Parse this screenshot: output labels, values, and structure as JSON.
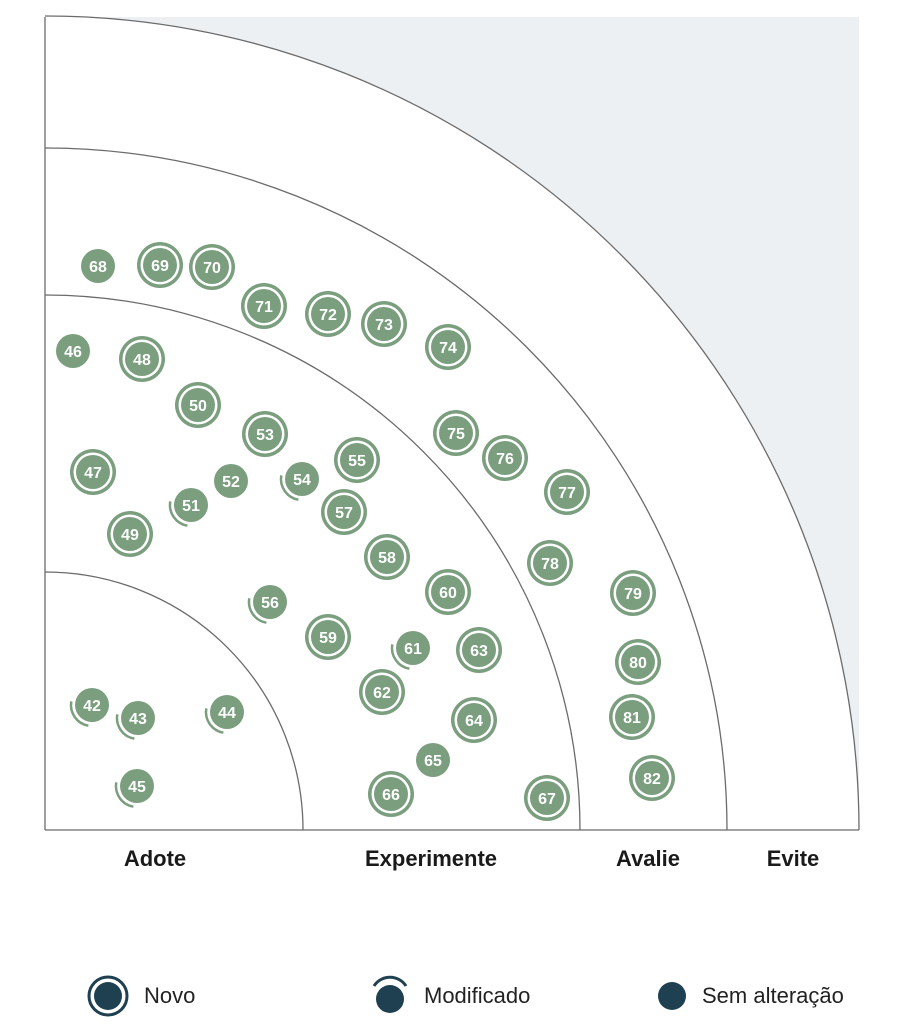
{
  "chart_data": {
    "type": "radar-quadrant",
    "rings": [
      "Adote",
      "Experimente",
      "Avalie",
      "Evite"
    ],
    "colors": {
      "blip": "#7a9e7e",
      "legend_icon": "#1e4050",
      "outer_area": "#edf0f2",
      "ring_line": "#6b6b6b",
      "label": "#1a1a1a"
    },
    "blips": [
      {
        "id": "42",
        "ring": "Adote",
        "status": "Modificado"
      },
      {
        "id": "43",
        "ring": "Adote",
        "status": "Modificado"
      },
      {
        "id": "44",
        "ring": "Adote",
        "status": "Modificado"
      },
      {
        "id": "45",
        "ring": "Adote",
        "status": "Modificado"
      },
      {
        "id": "46",
        "ring": "Experimente",
        "status": "Sem alteração"
      },
      {
        "id": "47",
        "ring": "Experimente",
        "status": "Novo"
      },
      {
        "id": "48",
        "ring": "Experimente",
        "status": "Novo"
      },
      {
        "id": "49",
        "ring": "Experimente",
        "status": "Novo"
      },
      {
        "id": "50",
        "ring": "Experimente",
        "status": "Novo"
      },
      {
        "id": "51",
        "ring": "Experimente",
        "status": "Modificado"
      },
      {
        "id": "52",
        "ring": "Experimente",
        "status": "Sem alteração"
      },
      {
        "id": "53",
        "ring": "Experimente",
        "status": "Novo"
      },
      {
        "id": "54",
        "ring": "Experimente",
        "status": "Modificado"
      },
      {
        "id": "55",
        "ring": "Experimente",
        "status": "Novo"
      },
      {
        "id": "56",
        "ring": "Experimente",
        "status": "Modificado"
      },
      {
        "id": "57",
        "ring": "Experimente",
        "status": "Novo"
      },
      {
        "id": "58",
        "ring": "Experimente",
        "status": "Novo"
      },
      {
        "id": "59",
        "ring": "Experimente",
        "status": "Novo"
      },
      {
        "id": "60",
        "ring": "Experimente",
        "status": "Novo"
      },
      {
        "id": "61",
        "ring": "Experimente",
        "status": "Modificado"
      },
      {
        "id": "62",
        "ring": "Experimente",
        "status": "Novo"
      },
      {
        "id": "63",
        "ring": "Experimente",
        "status": "Novo"
      },
      {
        "id": "64",
        "ring": "Experimente",
        "status": "Novo"
      },
      {
        "id": "65",
        "ring": "Experimente",
        "status": "Sem alteração"
      },
      {
        "id": "66",
        "ring": "Experimente",
        "status": "Novo"
      },
      {
        "id": "67",
        "ring": "Experimente",
        "status": "Novo"
      },
      {
        "id": "68",
        "ring": "Avalie",
        "status": "Sem alteração"
      },
      {
        "id": "69",
        "ring": "Avalie",
        "status": "Novo"
      },
      {
        "id": "70",
        "ring": "Avalie",
        "status": "Novo"
      },
      {
        "id": "71",
        "ring": "Avalie",
        "status": "Novo"
      },
      {
        "id": "72",
        "ring": "Avalie",
        "status": "Novo"
      },
      {
        "id": "73",
        "ring": "Avalie",
        "status": "Novo"
      },
      {
        "id": "74",
        "ring": "Avalie",
        "status": "Novo"
      },
      {
        "id": "75",
        "ring": "Avalie",
        "status": "Novo"
      },
      {
        "id": "76",
        "ring": "Avalie",
        "status": "Novo"
      },
      {
        "id": "77",
        "ring": "Avalie",
        "status": "Novo"
      },
      {
        "id": "78",
        "ring": "Avalie",
        "status": "Novo"
      },
      {
        "id": "79",
        "ring": "Avalie",
        "status": "Novo"
      },
      {
        "id": "80",
        "ring": "Avalie",
        "status": "Novo"
      },
      {
        "id": "81",
        "ring": "Avalie",
        "status": "Novo"
      },
      {
        "id": "82",
        "ring": "Avalie",
        "status": "Novo"
      }
    ]
  },
  "legend": {
    "novo": "Novo",
    "modificado": "Modificado",
    "sem_alteracao": "Sem alteração"
  }
}
